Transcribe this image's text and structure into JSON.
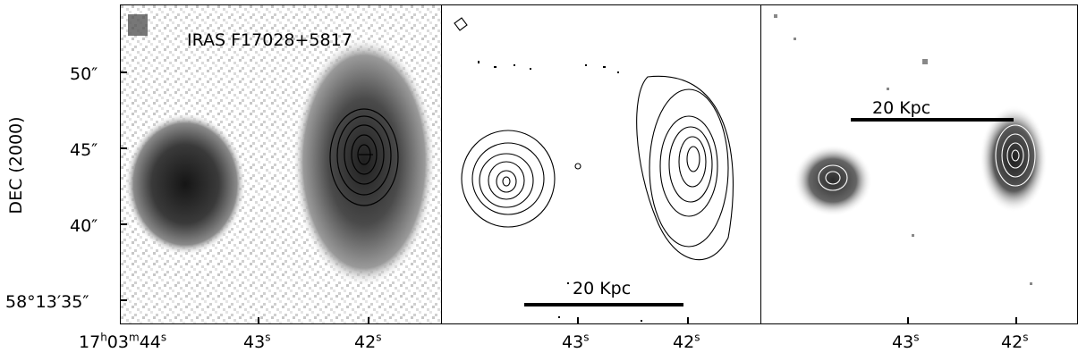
{
  "figure": {
    "object_label": "IRAS F17028+5817",
    "y_axis_title": "DEC (2000)",
    "y_ticks": [
      "50″",
      "45″",
      "40″",
      "58°13′35″"
    ],
    "x_ticks_panel1": [
      {
        "h": "17",
        "hu": "h",
        "m": "03",
        "mu": "m",
        "s": "44",
        "su": "s"
      },
      {
        "s": "43",
        "su": "s"
      },
      {
        "s": "42",
        "su": "s"
      }
    ],
    "x_ticks_panel2": [
      {
        "s": "43",
        "su": "s"
      },
      {
        "s": "42",
        "su": "s"
      }
    ],
    "x_ticks_panel3": [
      {
        "s": "43",
        "su": "s"
      },
      {
        "s": "42",
        "su": "s"
      }
    ],
    "scalebar_panel2": "20 Kpc",
    "scalebar_panel3": "20 Kpc",
    "colors": {
      "frame": "#000000",
      "background": "#ffffff",
      "galaxy_dark": "#1a1a1a",
      "noise": "#777777"
    }
  }
}
